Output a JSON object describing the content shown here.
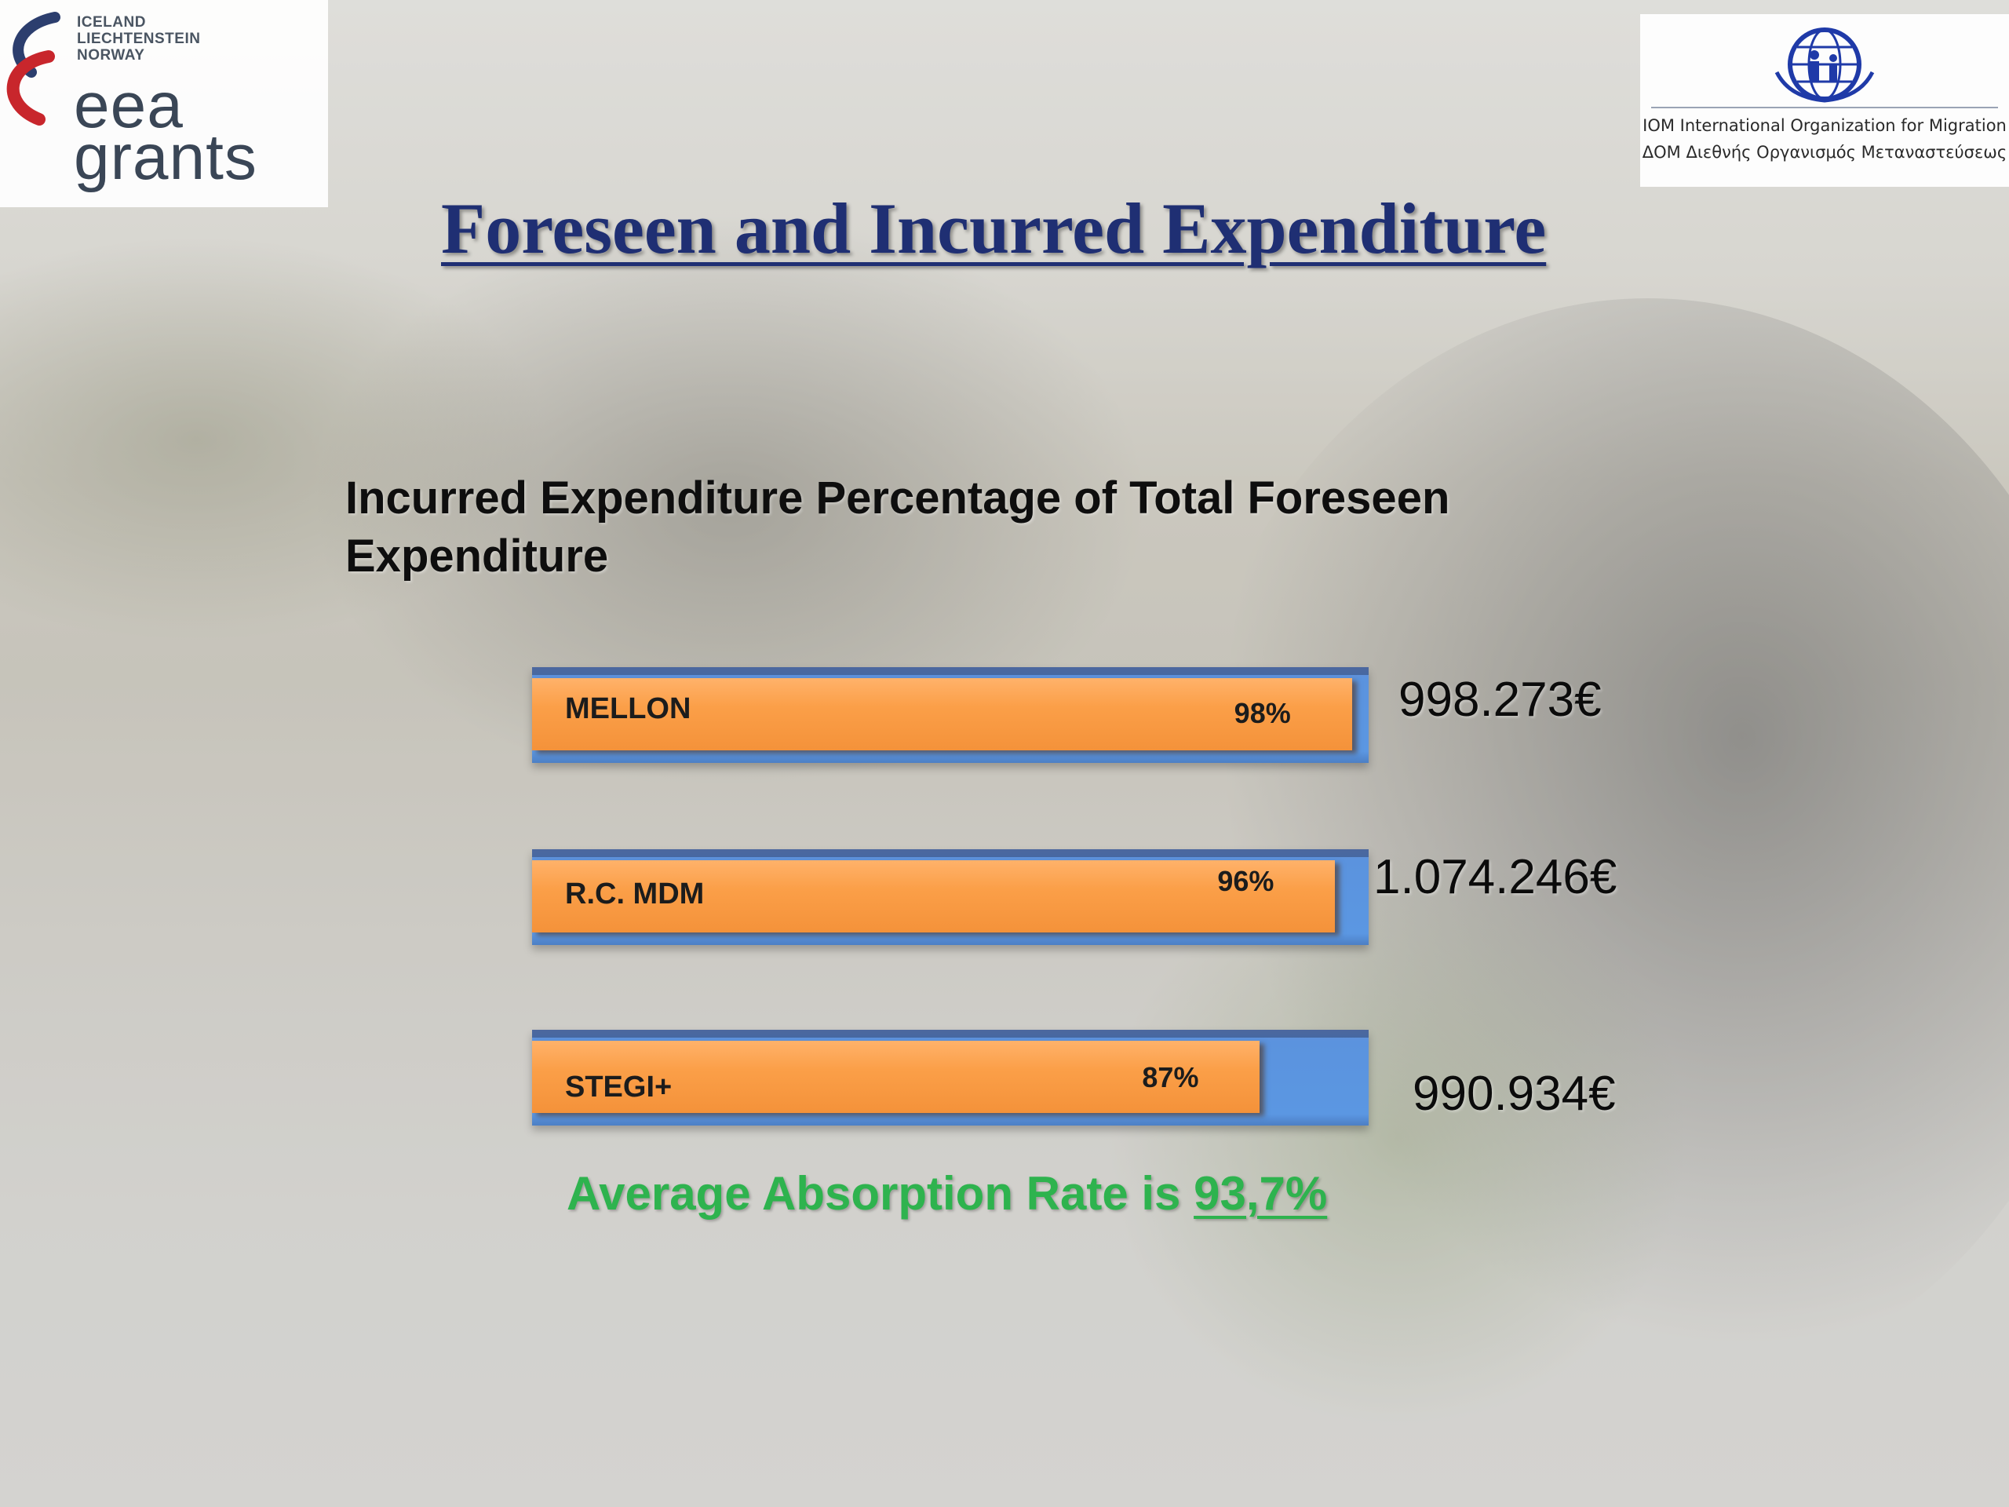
{
  "logos": {
    "left": {
      "countries": [
        "ICELAND",
        "LIECHTENSTEIN",
        "NORWAY"
      ],
      "word_top": "eea",
      "word_bottom": "grants"
    },
    "right": {
      "line1": "IOM International Organization for Migration",
      "line2": "ΔΟΜ Διεθνής Οργανισμός Μεταναστεύσεως"
    }
  },
  "slide_title": "Foreseen and Incurred Expenditure",
  "summary": {
    "prefix": "Average Absorption Rate is ",
    "rate": "93,7%"
  },
  "colors": {
    "title": "#1f2f73",
    "bar_total": "#5b97e2",
    "bar_incurred": "#f79a45",
    "summary": "#2eb34e"
  },
  "chart_data": {
    "type": "bar",
    "orientation": "horizontal",
    "title": "Incurred Expenditure Percentage of Total Foreseen Expenditure",
    "categories": [
      "MELLON",
      "R.C. MDM",
      "STEGI+"
    ],
    "values": [
      98,
      96,
      87
    ],
    "value_labels": [
      "98%",
      "96%",
      "87%"
    ],
    "unit": "%",
    "xlim": [
      0,
      100
    ],
    "totals": [
      "998.273€",
      "1.074.246€",
      "990.934€"
    ],
    "legend": "none",
    "grid": false
  }
}
